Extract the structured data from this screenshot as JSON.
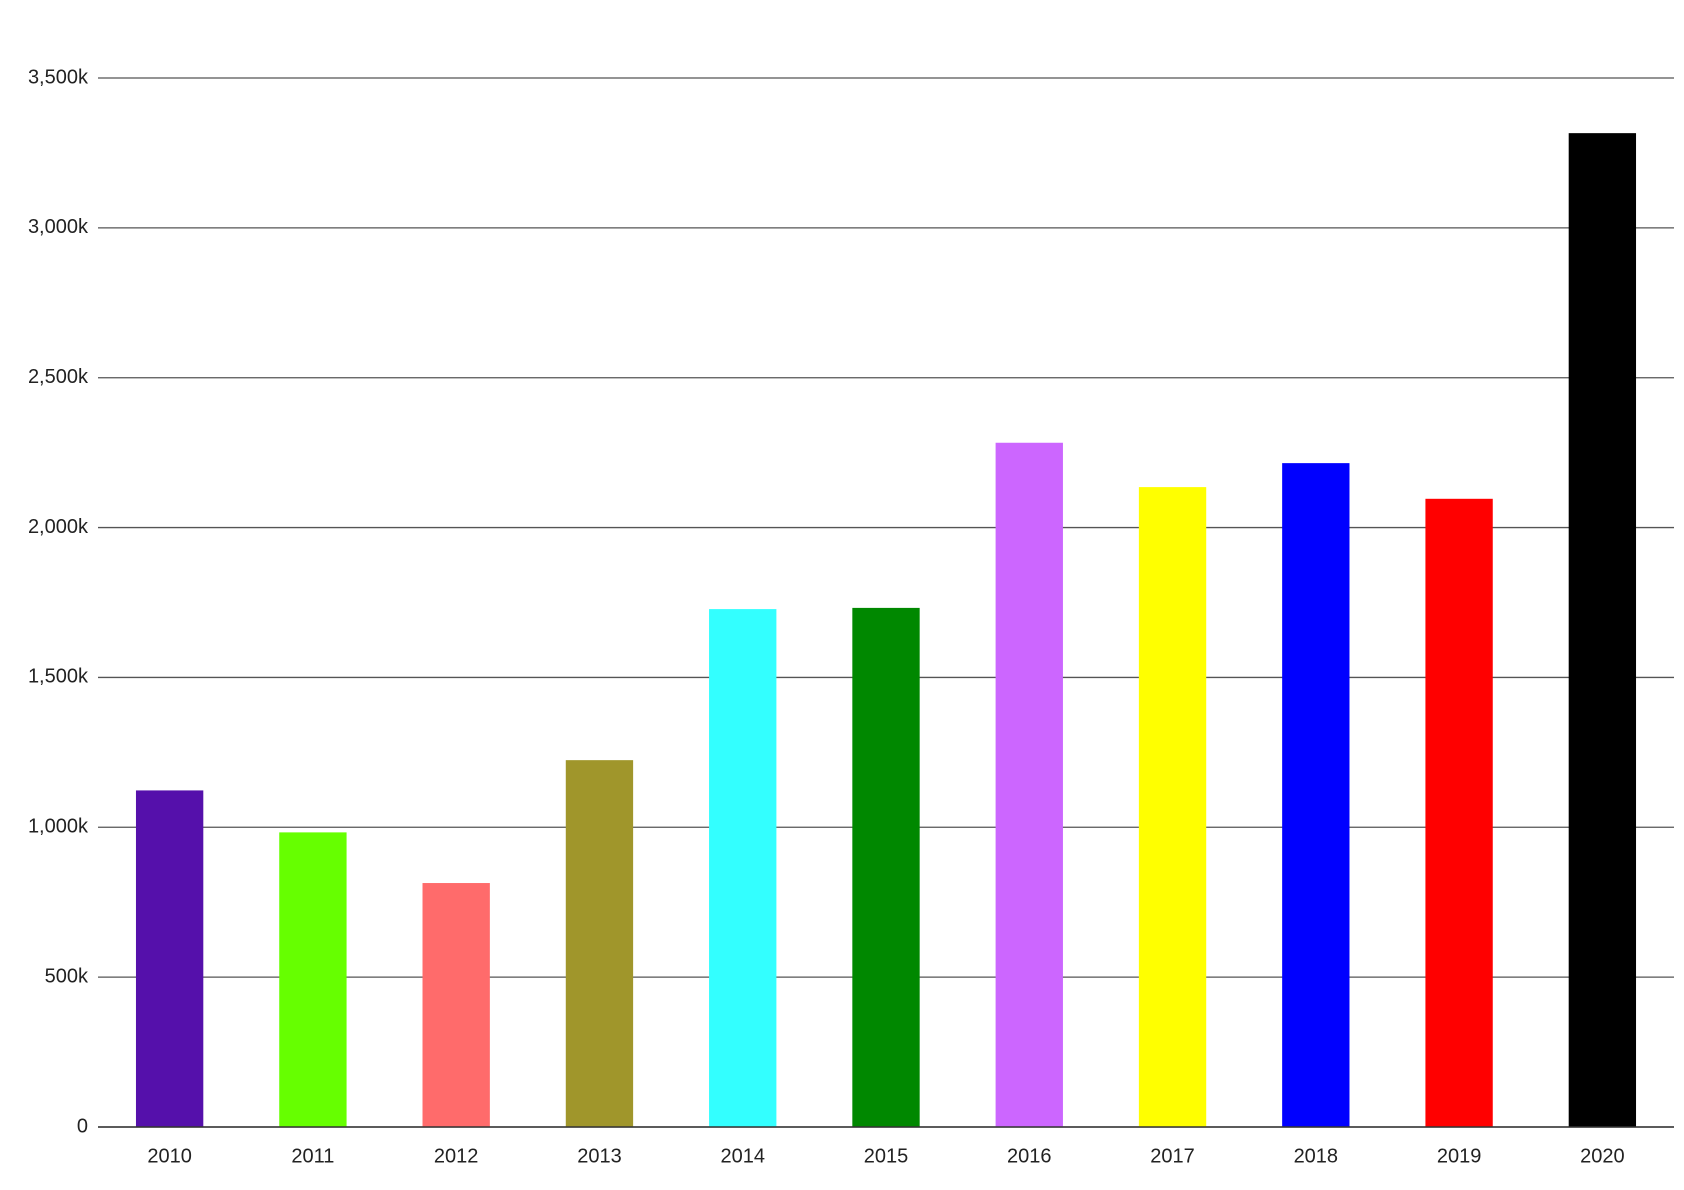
{
  "chart_data": {
    "type": "bar",
    "categories": [
      "2010",
      "2011",
      "2012",
      "2013",
      "2014",
      "2015",
      "2016",
      "2017",
      "2018",
      "2019",
      "2020"
    ],
    "values": [
      1123000,
      983000,
      814000,
      1224000,
      1728000,
      1732000,
      2283000,
      2135000,
      2215000,
      2096000,
      3316000
    ],
    "colors": [
      "#5510ab",
      "#66ff00",
      "#ff6b6b",
      "#a0962b",
      "#33ffff",
      "#008800",
      "#cc66ff",
      "#ffff00",
      "#0000ff",
      "#ff0000",
      "#000000"
    ],
    "ylim": [
      0,
      3500000
    ],
    "yticks": [
      0,
      {
        "value": 500000,
        "label": "500k"
      },
      {
        "value": 1000000,
        "label": "1,000k"
      },
      {
        "value": 1500000,
        "label": "1,500k"
      },
      {
        "value": 2000000,
        "label": "2,000k"
      },
      {
        "value": 2500000,
        "label": "2,500k"
      },
      {
        "value": 3000000,
        "label": "3,000k"
      },
      {
        "value": 3500000,
        "label": "3,500k"
      }
    ],
    "grid": true
  }
}
